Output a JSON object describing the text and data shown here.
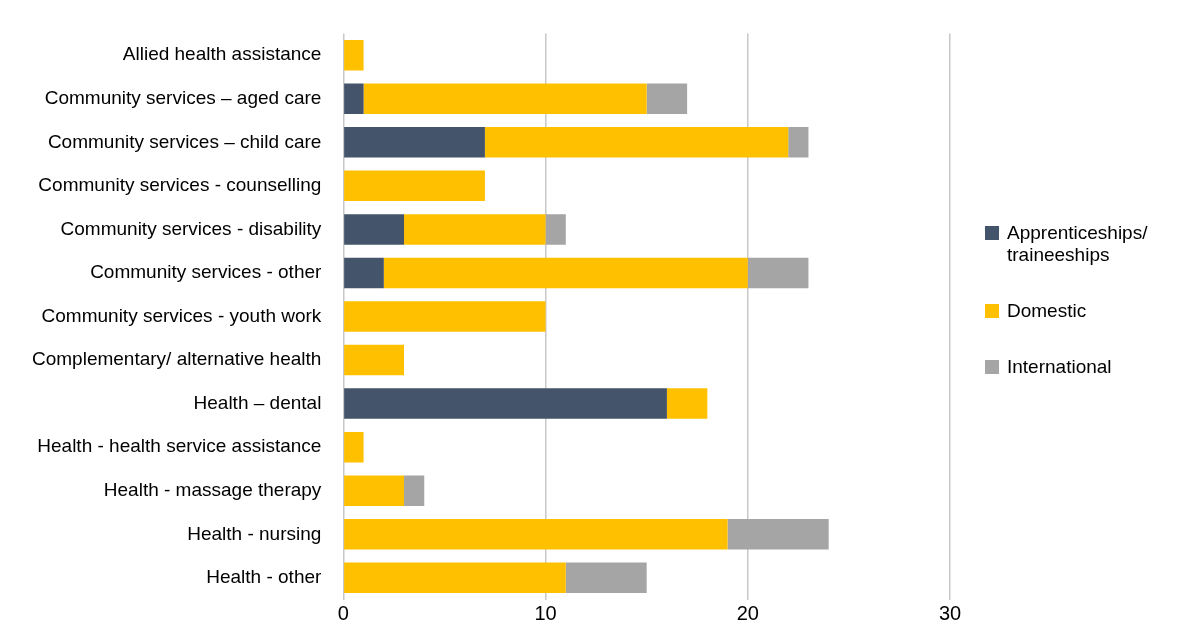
{
  "chart_data": {
    "type": "bar",
    "orientation": "horizontal",
    "stacked": true,
    "categories": [
      "Allied health assistance",
      "Community services – aged care",
      "Community services – child care",
      "Community services - counselling",
      "Community services - disability",
      "Community services - other",
      "Community services - youth work",
      "Complementary/ alternative health",
      "Health – dental",
      "Health - health service assistance",
      "Health - massage therapy",
      "Health - nursing",
      "Health - other"
    ],
    "series": [
      {
        "name": "Apprenticeships/ traineeships",
        "color": "#44546a",
        "values": [
          null,
          1,
          7,
          null,
          3,
          2,
          null,
          null,
          16,
          null,
          null,
          null,
          null
        ]
      },
      {
        "name": "Domestic",
        "color": "#ffc000",
        "values": [
          1,
          14,
          15,
          7,
          7,
          18,
          10,
          3,
          2,
          1,
          3,
          19,
          11
        ]
      },
      {
        "name": "International",
        "color": "#a5a5a5",
        "values": [
          null,
          2,
          1,
          null,
          1,
          3,
          null,
          null,
          null,
          null,
          1,
          5,
          4
        ]
      }
    ],
    "xlim": [
      0,
      30
    ],
    "xticks": [
      0,
      10,
      20,
      30
    ],
    "grid": "x",
    "legend": "right"
  }
}
